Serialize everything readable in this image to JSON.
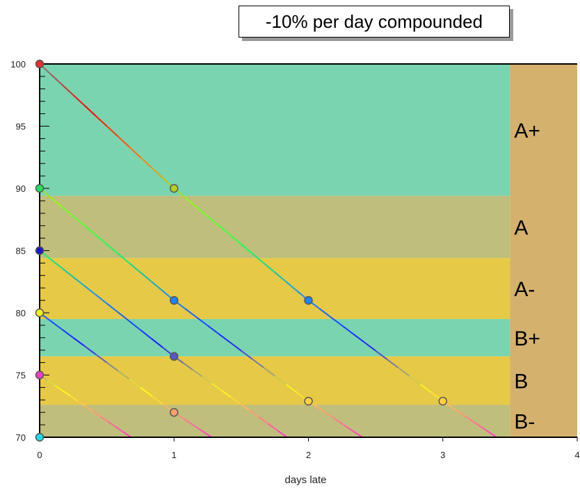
{
  "title": "-10% per day compounded",
  "chart_data": {
    "type": "line",
    "title": "-10% per day compounded",
    "xlabel": "days late",
    "ylabel": "",
    "xlim": [
      0,
      4
    ],
    "ylim": [
      70,
      100
    ],
    "x_ticks": [
      0,
      1,
      2,
      3,
      4
    ],
    "y_ticks": [
      70,
      75,
      80,
      85,
      90,
      95,
      100
    ],
    "grid": false,
    "decay_per_day": 0.9,
    "grade_bands": [
      {
        "label": "A+",
        "y_min": 89.4,
        "y_max": 100,
        "color": "#7ad4b0"
      },
      {
        "label": "A",
        "y_min": 84.4,
        "y_max": 89.4,
        "color": "#bfbe7c"
      },
      {
        "label": "A-",
        "y_min": 79.5,
        "y_max": 84.4,
        "color": "#e6c946"
      },
      {
        "label": "B+",
        "y_min": 76.5,
        "y_max": 79.5,
        "color": "#7ad4b0"
      },
      {
        "label": "B",
        "y_min": 72.6,
        "y_max": 76.5,
        "color": "#e6c946"
      },
      {
        "label": "B-",
        "y_min": 70,
        "y_max": 72.6,
        "color": "#bfbe7c"
      }
    ],
    "grade_column": {
      "x_min": 3.5,
      "x_max": 4,
      "color": "#d4b16c"
    },
    "series": [
      {
        "start": 100,
        "points": [
          [
            0,
            100
          ],
          [
            1,
            90
          ],
          [
            2,
            81
          ],
          [
            3,
            72.9
          ],
          [
            3.4,
            70
          ]
        ],
        "start_color": "#e8312a"
      },
      {
        "start": 90,
        "points": [
          [
            0,
            90
          ],
          [
            1,
            81
          ],
          [
            2,
            72.9
          ],
          [
            2.4,
            70
          ]
        ],
        "start_color": "#22e05a"
      },
      {
        "start": 85,
        "points": [
          [
            0,
            85
          ],
          [
            1,
            76.5
          ],
          [
            1.84,
            70
          ]
        ],
        "start_color": "#1a1ac8"
      },
      {
        "start": 80,
        "points": [
          [
            0,
            80
          ],
          [
            1,
            72
          ],
          [
            1.28,
            70
          ]
        ],
        "start_color": "#f2f20a"
      },
      {
        "start": 75,
        "points": [
          [
            0,
            75
          ],
          [
            0.68,
            70
          ]
        ],
        "start_color": "#ee3ec8"
      },
      {
        "start": 70,
        "points": [
          [
            0,
            70
          ]
        ],
        "start_color": "#26d6ea"
      }
    ]
  }
}
